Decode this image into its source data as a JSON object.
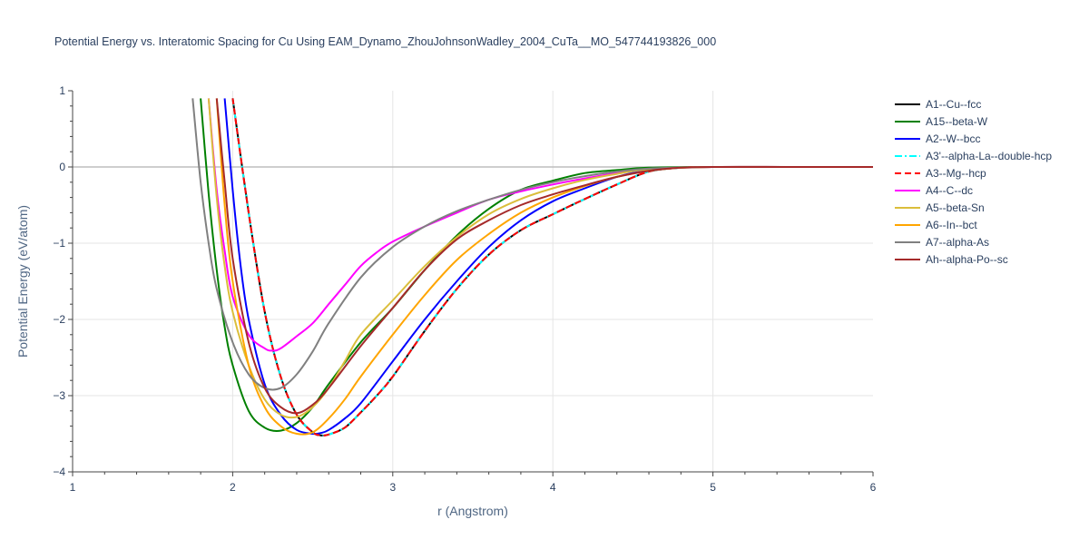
{
  "chart_data": {
    "type": "line",
    "title": "Potential Energy vs. Interatomic Spacing for Cu Using EAM_Dynamo_ZhouJohnsonWadley_2004_CuTa__MO_547744193826_000",
    "xlabel": "r (Angstrom)",
    "ylabel": "Potential Energy (eV/atom)",
    "xlim": [
      1,
      6
    ],
    "ylim": [
      -4,
      1
    ],
    "x_ticks": [
      "1",
      "2",
      "3",
      "4",
      "5",
      "6"
    ],
    "y_ticks": [
      "1",
      "0",
      "−1",
      "−2",
      "−3",
      "−4"
    ],
    "grid": true,
    "legend_position": "right",
    "series": [
      {
        "name": "A1--Cu--fcc",
        "color": "#000000",
        "dash": "solid",
        "x": [
          2.0,
          2.1,
          2.2,
          2.3,
          2.4,
          2.5,
          2.55,
          2.6,
          2.7,
          2.8,
          2.9,
          3.0,
          3.2,
          3.4,
          3.6,
          3.8,
          4.0,
          4.2,
          4.4,
          4.6,
          4.8,
          5.0,
          5.5,
          6.0
        ],
        "y": [
          0.9,
          -0.6,
          -1.9,
          -2.75,
          -3.25,
          -3.48,
          -3.52,
          -3.51,
          -3.42,
          -3.22,
          -3.0,
          -2.75,
          -2.15,
          -1.6,
          -1.15,
          -0.83,
          -0.62,
          -0.42,
          -0.23,
          -0.06,
          -0.01,
          0,
          0,
          0
        ]
      },
      {
        "name": "A15--beta-W",
        "color": "#008000",
        "dash": "solid",
        "x": [
          1.8,
          1.85,
          1.9,
          1.95,
          2.0,
          2.1,
          2.2,
          2.3,
          2.4,
          2.5,
          2.6,
          2.8,
          3.0,
          3.2,
          3.4,
          3.6,
          3.8,
          4.0,
          4.2,
          4.4,
          4.6,
          5.0,
          5.5,
          6.0
        ],
        "y": [
          0.9,
          -0.35,
          -1.35,
          -2.1,
          -2.6,
          -3.2,
          -3.42,
          -3.46,
          -3.36,
          -3.15,
          -2.85,
          -2.3,
          -1.85,
          -1.35,
          -0.9,
          -0.55,
          -0.3,
          -0.18,
          -0.08,
          -0.04,
          -0.01,
          0,
          0,
          0
        ]
      },
      {
        "name": "A2--W--bcc",
        "color": "#0000ff",
        "dash": "solid",
        "x": [
          1.95,
          2.0,
          2.05,
          2.1,
          2.2,
          2.3,
          2.4,
          2.5,
          2.55,
          2.6,
          2.7,
          2.8,
          3.0,
          3.2,
          3.4,
          3.6,
          3.8,
          4.0,
          4.2,
          4.4,
          4.6,
          4.8,
          5.0,
          5.5,
          6.0
        ],
        "y": [
          0.9,
          -0.3,
          -1.3,
          -2.0,
          -2.85,
          -3.25,
          -3.45,
          -3.5,
          -3.49,
          -3.45,
          -3.3,
          -3.1,
          -2.55,
          -2.0,
          -1.5,
          -1.05,
          -0.7,
          -0.45,
          -0.28,
          -0.13,
          -0.04,
          -0.01,
          0,
          0,
          0
        ]
      },
      {
        "name": "A3'--alpha-La--double-hcp",
        "color": "#00ffff",
        "dash": "dashdot",
        "x": [
          2.0,
          2.1,
          2.2,
          2.3,
          2.4,
          2.5,
          2.55,
          2.6,
          2.7,
          2.8,
          2.9,
          3.0,
          3.2,
          3.4,
          3.6,
          3.8,
          4.0,
          4.2,
          4.4,
          4.6,
          4.8,
          5.0,
          5.5,
          6.0
        ],
        "y": [
          0.9,
          -0.6,
          -1.9,
          -2.75,
          -3.25,
          -3.48,
          -3.52,
          -3.51,
          -3.42,
          -3.22,
          -3.0,
          -2.75,
          -2.15,
          -1.6,
          -1.15,
          -0.83,
          -0.62,
          -0.42,
          -0.23,
          -0.06,
          -0.01,
          0,
          0,
          0
        ]
      },
      {
        "name": "A3--Mg--hcp",
        "color": "#ff0000",
        "dash": "dash",
        "x": [
          2.0,
          2.1,
          2.2,
          2.3,
          2.4,
          2.5,
          2.55,
          2.6,
          2.7,
          2.8,
          2.9,
          3.0,
          3.2,
          3.4,
          3.6,
          3.8,
          4.0,
          4.2,
          4.4,
          4.6,
          4.8,
          5.0,
          5.5,
          6.0
        ],
        "y": [
          0.9,
          -0.6,
          -1.9,
          -2.75,
          -3.25,
          -3.48,
          -3.52,
          -3.51,
          -3.42,
          -3.22,
          -3.0,
          -2.75,
          -2.15,
          -1.6,
          -1.15,
          -0.83,
          -0.62,
          -0.42,
          -0.23,
          -0.06,
          -0.01,
          0,
          0,
          0
        ]
      },
      {
        "name": "A4--C--dc",
        "color": "#ff00ff",
        "dash": "solid",
        "x": [
          1.85,
          1.9,
          1.95,
          2.0,
          2.1,
          2.2,
          2.25,
          2.3,
          2.4,
          2.5,
          2.6,
          2.7,
          2.8,
          2.9,
          3.0,
          3.2,
          3.4,
          3.6,
          3.8,
          4.0,
          4.2,
          4.4,
          4.6,
          5.0,
          5.5,
          6.0
        ],
        "y": [
          0.9,
          -0.3,
          -1.1,
          -1.7,
          -2.2,
          -2.38,
          -2.41,
          -2.38,
          -2.22,
          -2.05,
          -1.8,
          -1.55,
          -1.3,
          -1.12,
          -0.98,
          -0.78,
          -0.6,
          -0.43,
          -0.32,
          -0.23,
          -0.15,
          -0.08,
          -0.03,
          0,
          0,
          0
        ]
      },
      {
        "name": "A5--beta-Sn",
        "color": "#dbbe3b",
        "dash": "solid",
        "x": [
          1.85,
          1.9,
          1.95,
          2.0,
          2.1,
          2.2,
          2.3,
          2.4,
          2.5,
          2.6,
          2.7,
          2.8,
          3.0,
          3.2,
          3.4,
          3.6,
          3.8,
          4.0,
          4.2,
          4.4,
          4.6,
          5.0,
          5.5,
          6.0
        ],
        "y": [
          0.9,
          -0.4,
          -1.3,
          -1.9,
          -2.6,
          -3.05,
          -3.25,
          -3.28,
          -3.15,
          -2.9,
          -2.55,
          -2.2,
          -1.75,
          -1.3,
          -0.92,
          -0.62,
          -0.42,
          -0.28,
          -0.17,
          -0.09,
          -0.03,
          0,
          0,
          0
        ]
      },
      {
        "name": "A6--In--bct",
        "color": "#ffa500",
        "dash": "solid",
        "x": [
          1.9,
          1.95,
          2.0,
          2.1,
          2.2,
          2.3,
          2.4,
          2.5,
          2.6,
          2.7,
          2.8,
          3.0,
          3.2,
          3.4,
          3.6,
          3.8,
          4.0,
          4.2,
          4.4,
          4.6,
          4.8,
          5.0,
          5.5,
          6.0
        ],
        "y": [
          0.9,
          -0.5,
          -1.5,
          -2.6,
          -3.15,
          -3.4,
          -3.5,
          -3.48,
          -3.3,
          -3.05,
          -2.75,
          -2.2,
          -1.68,
          -1.22,
          -0.88,
          -0.6,
          -0.4,
          -0.25,
          -0.13,
          -0.05,
          -0.01,
          0,
          0,
          0
        ]
      },
      {
        "name": "A7--alpha-As",
        "color": "#808080",
        "dash": "solid",
        "x": [
          1.75,
          1.8,
          1.85,
          1.9,
          2.0,
          2.1,
          2.2,
          2.3,
          2.4,
          2.5,
          2.6,
          2.8,
          3.0,
          3.2,
          3.4,
          3.6,
          3.8,
          4.0,
          4.2,
          4.4,
          4.6,
          5.0,
          5.5,
          6.0
        ],
        "y": [
          0.9,
          -0.2,
          -1.0,
          -1.6,
          -2.3,
          -2.72,
          -2.9,
          -2.9,
          -2.72,
          -2.42,
          -2.05,
          -1.45,
          -1.05,
          -0.78,
          -0.58,
          -0.43,
          -0.3,
          -0.2,
          -0.12,
          -0.06,
          -0.02,
          0,
          0,
          0
        ]
      },
      {
        "name": "Ah--alpha-Po--sc",
        "color": "#a52a2a",
        "dash": "solid",
        "x": [
          1.9,
          1.95,
          2.0,
          2.1,
          2.2,
          2.3,
          2.4,
          2.5,
          2.6,
          2.8,
          3.0,
          3.2,
          3.4,
          3.6,
          3.8,
          4.0,
          4.2,
          4.4,
          4.6,
          4.8,
          5.0,
          5.5,
          6.0
        ],
        "y": [
          0.9,
          -0.2,
          -1.2,
          -2.3,
          -2.9,
          -3.15,
          -3.23,
          -3.12,
          -2.9,
          -2.35,
          -1.85,
          -1.35,
          -0.95,
          -0.7,
          -0.5,
          -0.36,
          -0.24,
          -0.13,
          -0.05,
          -0.01,
          0,
          0,
          0
        ]
      }
    ]
  }
}
